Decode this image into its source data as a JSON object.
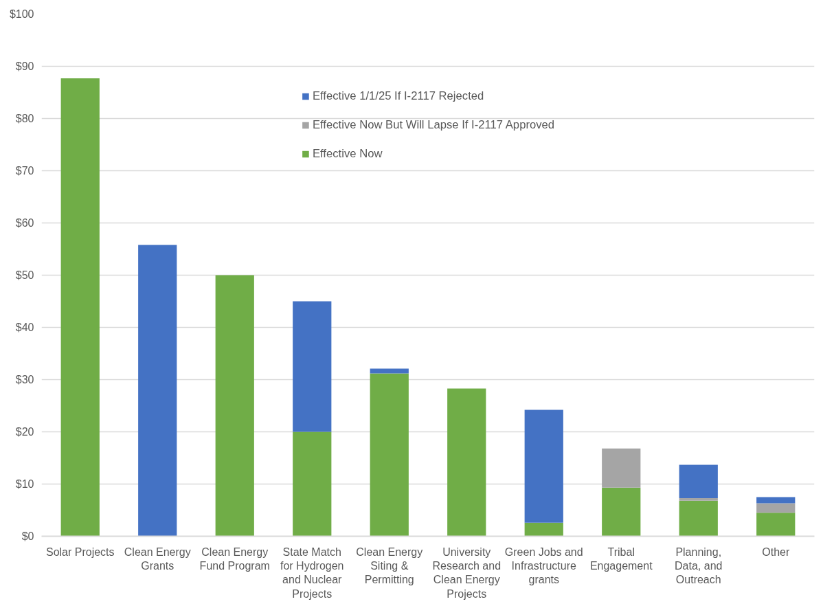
{
  "chart_data": {
    "type": "bar",
    "stacked": true,
    "categories": [
      "Solar Projects",
      "Clean Energy Grants",
      "Clean Energy Fund Program",
      "State Match for Hydrogen and Nuclear Projects",
      "Clean Energy Siting & Permitting",
      "University Research and Clean Energy Projects",
      "Green Jobs and Infrastructure grants",
      "Tribal Engagement",
      "Planning, Data, and Outreach",
      "Other"
    ],
    "series": [
      {
        "name": "Effective Now",
        "color": "#70ad47",
        "values": [
          87.7,
          0,
          50.0,
          20.0,
          31.2,
          28.3,
          2.6,
          9.3,
          6.8,
          4.5
        ]
      },
      {
        "name": "Effective Now But Will Lapse If I-2117 Approved",
        "color": "#a5a5a5",
        "values": [
          0,
          0,
          0,
          0,
          0,
          0,
          0,
          7.5,
          0.5,
          1.8
        ]
      },
      {
        "name": "Effective 1/1/25 If I-2117 Rejected",
        "color": "#4472c4",
        "values": [
          0,
          55.8,
          0,
          25.0,
          0.9,
          0,
          21.6,
          0,
          6.4,
          1.2
        ]
      }
    ],
    "ylim": [
      0,
      100
    ],
    "yticks": [
      {
        "value": 0,
        "label": "$0"
      },
      {
        "value": 10,
        "label": "$10"
      },
      {
        "value": 20,
        "label": "$20"
      },
      {
        "value": 30,
        "label": "$30"
      },
      {
        "value": 40,
        "label": "$40"
      },
      {
        "value": 50,
        "label": "$50"
      },
      {
        "value": 60,
        "label": "$60"
      },
      {
        "value": 70,
        "label": "$70"
      },
      {
        "value": 80,
        "label": "$80"
      },
      {
        "value": 90,
        "label": "$90"
      },
      {
        "value": 100,
        "label": "$100"
      }
    ],
    "grid": "y",
    "legend": "top"
  }
}
